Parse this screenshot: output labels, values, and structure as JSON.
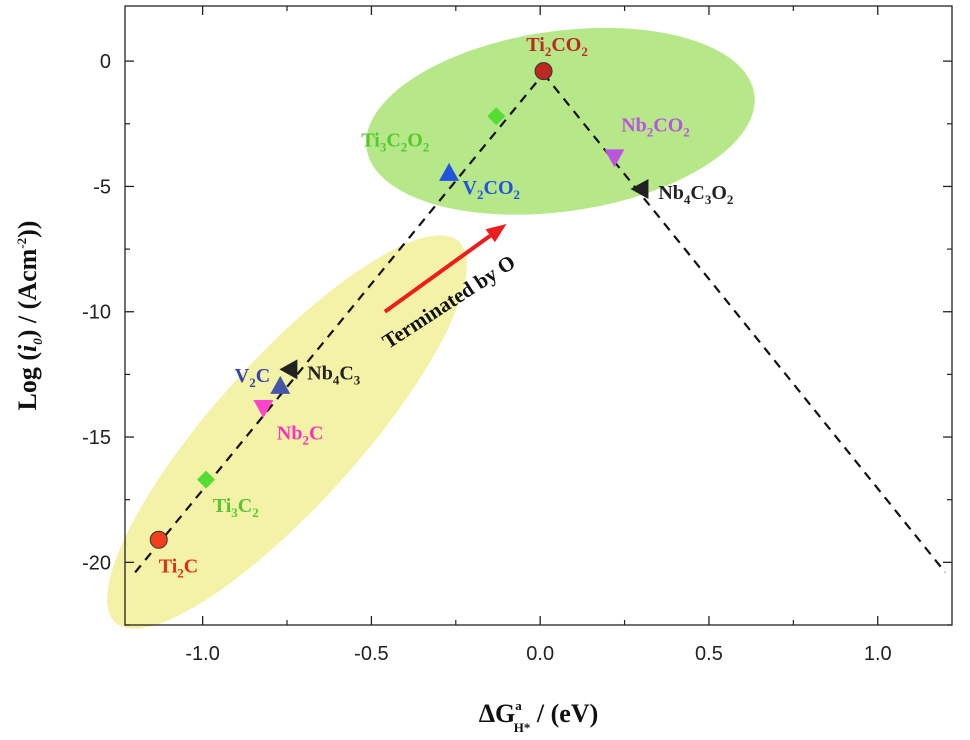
{
  "chart_data": {
    "type": "scatter",
    "xlabel": {
      "prefix": "ΔG",
      "sup": "a",
      "sub": "H*",
      "suffix": " / (eV)"
    },
    "ylabel": {
      "prefix": "Log (",
      "italic": "i",
      "italic_sub": "0",
      "mid": ") / (Acm",
      "sup": "-2",
      "suffix": "))"
    },
    "xlim": [
      -1.23,
      1.22
    ],
    "ylim": [
      -22.5,
      2.2
    ],
    "xticks": [
      -1.0,
      -0.5,
      0.0,
      0.5,
      1.0
    ],
    "xtick_labels": [
      "-1.0",
      "-0.5",
      "0.0",
      "0.5",
      "1.0"
    ],
    "yticks": [
      0,
      -5,
      -10,
      -15,
      -20
    ],
    "ytick_labels": [
      "0",
      "-5",
      "-10",
      "-15",
      "-20"
    ],
    "grid": false,
    "volcano_lines": [
      {
        "from": [
          -1.2,
          -20.4
        ],
        "to": [
          0.01,
          -0.5
        ]
      },
      {
        "from": [
          0.01,
          -0.5
        ],
        "to": [
          1.2,
          -20.4
        ]
      }
    ],
    "regions": [
      {
        "cx": -0.75,
        "cy": -14.8,
        "rx": 0.76,
        "ry": 2.9,
        "angle": -48,
        "color": "#f4f2a6"
      },
      {
        "cx": 0.06,
        "cy": -2.4,
        "rx": 0.58,
        "ry": 3.6,
        "angle": -8,
        "color": "#b6e88a"
      }
    ],
    "series": [
      {
        "label": "Ti2C",
        "parts": [
          "Ti",
          "2",
          "C"
        ],
        "x": -1.13,
        "y": -19.1,
        "marker": "circle",
        "color": "#f0401e",
        "label_color": "#e0301a",
        "ldx": 0.0,
        "ldy": -1.3,
        "anchor": "start"
      },
      {
        "label": "Ti3C2",
        "parts": [
          "Ti",
          "3",
          "C",
          "2"
        ],
        "x": -0.99,
        "y": -16.7,
        "marker": "diamond",
        "color": "#55dd33",
        "label_color": "#55c82e",
        "ldx": 0.02,
        "ldy": -1.3,
        "anchor": "start"
      },
      {
        "label": "Nb2C",
        "parts": [
          "Nb",
          "2",
          "C"
        ],
        "x": -0.82,
        "y": -13.8,
        "marker": "triangle-down",
        "color": "#ff44cc",
        "label_color": "#ff33bb",
        "ldx": 0.04,
        "ldy": -1.3,
        "anchor": "start"
      },
      {
        "label": "V2C",
        "parts": [
          "V",
          "2",
          "C"
        ],
        "x": -0.77,
        "y": -13.0,
        "marker": "triangle-up",
        "color": "#4455aa",
        "label_color": "#3344aa",
        "ldx": -0.03,
        "ldy": 0.2,
        "anchor": "end"
      },
      {
        "label": "Nb4C3",
        "parts": [
          "Nb",
          "4",
          "C",
          "3"
        ],
        "x": -0.74,
        "y": -12.3,
        "marker": "triangle-left",
        "color": "#222222",
        "label_color": "#222222",
        "ldx": 0.05,
        "ldy": -0.4,
        "anchor": "start"
      },
      {
        "label": "V2CO2",
        "parts": [
          "V",
          "2",
          "CO",
          "2"
        ],
        "x": -0.27,
        "y": -4.5,
        "marker": "triangle-up",
        "color": "#2255dd",
        "label_color": "#2255dd",
        "ldx": 0.04,
        "ldy": -0.8,
        "anchor": "start"
      },
      {
        "label": "Ti3C2O2",
        "parts": [
          "Ti",
          "3",
          "C",
          "2",
          "O",
          "2"
        ],
        "x": -0.13,
        "y": -2.2,
        "marker": "diamond",
        "color": "#55dd33",
        "label_color": "#55c82e",
        "ldx": -0.4,
        "ldy": -1.2,
        "anchor": "start"
      },
      {
        "label": "Ti2CO2",
        "parts": [
          "Ti",
          "2",
          "CO",
          "2"
        ],
        "x": 0.01,
        "y": -0.4,
        "marker": "circle",
        "color": "#bb2a22",
        "label_color": "#bb2a22",
        "ldx": 0.04,
        "ldy": 0.8,
        "anchor": "middle"
      },
      {
        "label": "Nb2CO2",
        "parts": [
          "Nb",
          "2",
          "CO",
          "2"
        ],
        "x": 0.22,
        "y": -3.8,
        "marker": "triangle-down",
        "color": "#bb55dd",
        "label_color": "#bb55dd",
        "ldx": 0.02,
        "ldy": 1.0,
        "anchor": "start"
      },
      {
        "label": "Nb4C3O2",
        "parts": [
          "Nb",
          "4",
          "C",
          "3",
          "O",
          "2"
        ],
        "x": 0.3,
        "y": -5.1,
        "marker": "triangle-left",
        "color": "#222222",
        "label_color": "#222222",
        "ldx": 0.05,
        "ldy": -0.4,
        "anchor": "start"
      }
    ],
    "annotation": {
      "text": "Terminated by O",
      "arrow_from": [
        -0.46,
        -10.0
      ],
      "arrow_to": [
        -0.1,
        -6.5
      ],
      "text_at": [
        -0.45,
        -11.5
      ],
      "angle": -33,
      "arrow_color": "#ee1c1c"
    }
  }
}
